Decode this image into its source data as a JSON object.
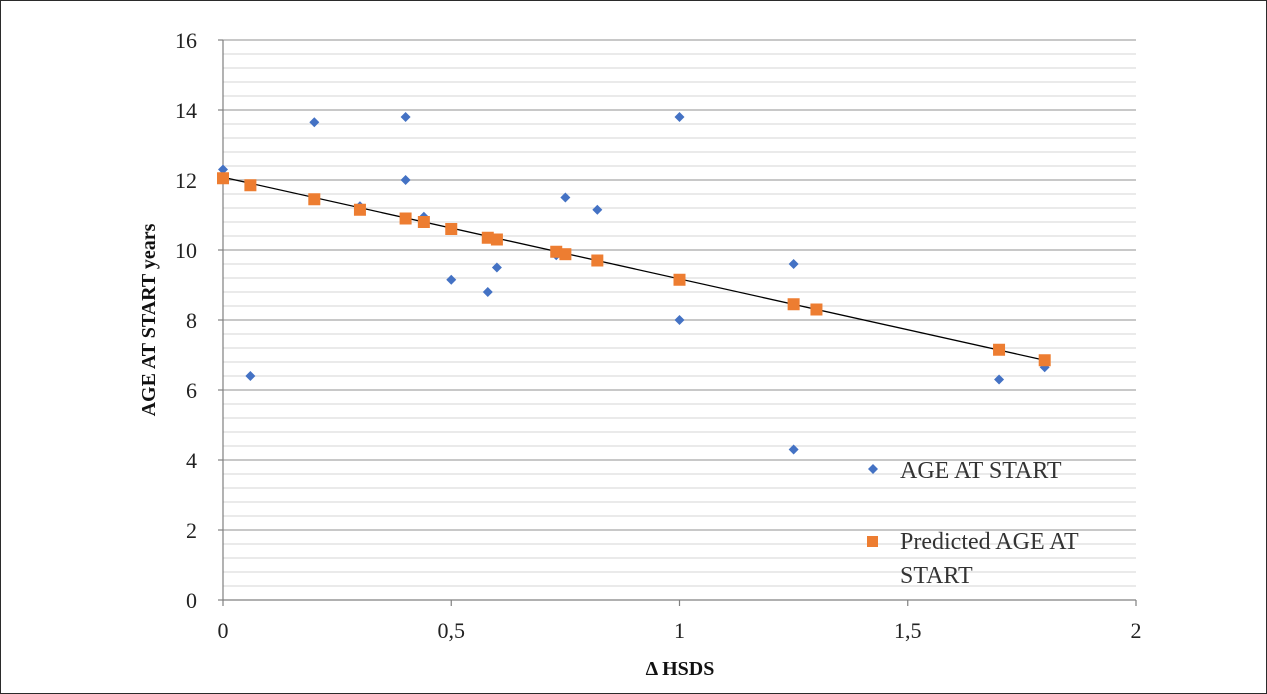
{
  "chart_data": {
    "type": "scatter",
    "title": "",
    "xlabel": "Δ HSDS",
    "ylabel": "AGE AT START years",
    "xlim": [
      0,
      2
    ],
    "ylim": [
      0,
      16
    ],
    "x_ticks": [
      "0",
      "0,5",
      "1",
      "1,5",
      "2"
    ],
    "y_ticks": [
      "0",
      "2",
      "4",
      "6",
      "8",
      "10",
      "12",
      "14",
      "16"
    ],
    "grid": "horizontal major and minor",
    "legend_position": "bottom-right",
    "colors": {
      "observed": "#4472C4",
      "predicted": "#ED7D31",
      "trendline": "#000000",
      "grid": "#C8C8C8"
    },
    "series": [
      {
        "name": "AGE AT START",
        "marker": "diamond",
        "x": [
          0.0,
          0.06,
          0.2,
          0.3,
          0.4,
          0.4,
          0.44,
          0.5,
          0.58,
          0.6,
          0.73,
          0.75,
          0.82,
          1.0,
          1.0,
          1.25,
          1.25,
          1.7,
          1.8
        ],
        "y": [
          12.3,
          6.4,
          13.65,
          11.25,
          13.8,
          12.0,
          10.95,
          9.15,
          8.8,
          9.5,
          9.85,
          11.5,
          11.15,
          13.8,
          8.0,
          9.6,
          4.3,
          6.3,
          6.65
        ]
      },
      {
        "name": "Predicted AGE AT START",
        "marker": "square",
        "x": [
          0.0,
          0.06,
          0.2,
          0.3,
          0.4,
          0.44,
          0.5,
          0.58,
          0.6,
          0.73,
          0.75,
          0.82,
          1.0,
          1.25,
          1.3,
          1.7,
          1.8
        ],
        "y": [
          12.05,
          11.85,
          11.45,
          11.15,
          10.9,
          10.8,
          10.6,
          10.35,
          10.3,
          9.95,
          9.88,
          9.7,
          9.15,
          8.45,
          8.3,
          7.15,
          6.85
        ]
      }
    ],
    "trendline": {
      "x": [
        0.0,
        1.8
      ],
      "y": [
        12.08,
        6.85
      ]
    },
    "legend": {
      "entries": [
        "AGE AT START",
        "Predicted AGE AT",
        "START"
      ]
    }
  }
}
